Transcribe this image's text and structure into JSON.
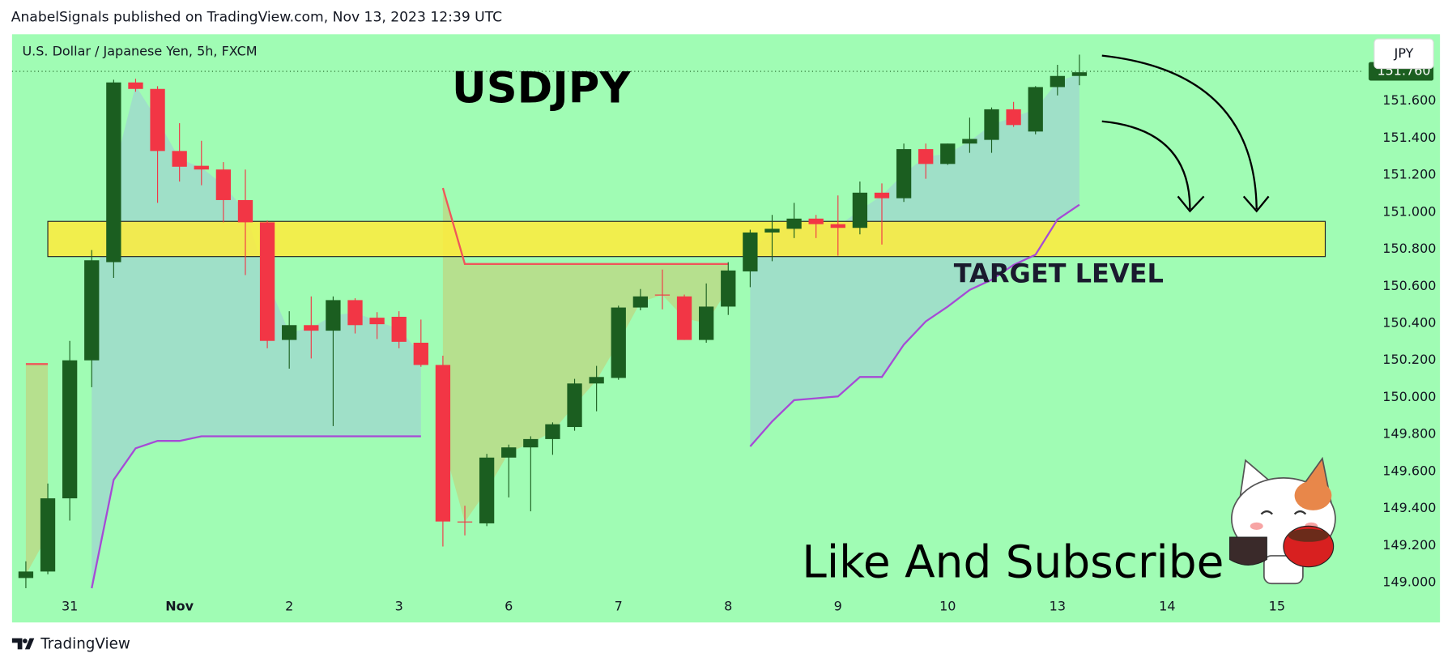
{
  "published": "AnabelSignals published on TradingView.com, Nov 13, 2023 12:39 UTC",
  "brand": "TradingView",
  "currency_button": "JPY",
  "chart_data": {
    "type": "candlestick",
    "title": "USDJPY",
    "subtitle": "U.S. Dollar / Japanese Yen, 5h, FXCM",
    "zone_label": "TARGET LEVEL",
    "call_to_action": "Like And Subscribe",
    "up_color": "#1b5e20",
    "down_color": "#f23645",
    "background": "#a0fcb4",
    "x": [
      0,
      1,
      2,
      3,
      4,
      5,
      6,
      7,
      8,
      9,
      10,
      11,
      12,
      13,
      14,
      15,
      16,
      17,
      18,
      19,
      20,
      21,
      22,
      23,
      24,
      25,
      26,
      27,
      28,
      29,
      30,
      31,
      32,
      33,
      34,
      35,
      36,
      37,
      38,
      39,
      40,
      41,
      42,
      43,
      44,
      45,
      46,
      47,
      48
    ],
    "open": [
      149.025,
      149.06,
      149.455,
      150.2,
      150.73,
      151.7,
      151.665,
      151.33,
      151.25,
      151.23,
      151.065,
      150.945,
      150.31,
      150.39,
      150.36,
      150.525,
      150.43,
      150.435,
      150.295,
      150.175,
      149.33,
      149.32,
      149.675,
      149.73,
      149.775,
      149.84,
      150.075,
      150.105,
      150.485,
      150.555,
      150.545,
      150.31,
      150.49,
      150.68,
      150.89,
      150.91,
      150.965,
      150.935,
      150.915,
      151.105,
      151.075,
      151.34,
      151.26,
      151.37,
      151.39,
      151.555,
      151.435,
      151.675,
      151.735
    ],
    "high": [
      149.115,
      149.535,
      150.305,
      150.795,
      151.715,
      151.72,
      151.68,
      151.48,
      151.385,
      151.27,
      151.23,
      150.955,
      150.465,
      150.545,
      150.545,
      150.535,
      150.46,
      150.465,
      150.42,
      150.225,
      149.415,
      149.695,
      149.745,
      149.79,
      149.865,
      150.1,
      150.17,
      150.495,
      150.585,
      150.69,
      150.555,
      150.615,
      150.73,
      150.905,
      150.985,
      151.05,
      150.985,
      151.09,
      151.165,
      151.155,
      151.37,
      151.37,
      151.37,
      151.51,
      151.565,
      151.595,
      151.68,
      151.795,
      151.85
    ],
    "low": [
      148.97,
      149.045,
      149.335,
      150.055,
      150.645,
      151.65,
      151.05,
      151.165,
      151.145,
      150.945,
      150.66,
      150.265,
      150.155,
      150.21,
      149.845,
      150.345,
      150.315,
      150.265,
      150.165,
      149.195,
      149.255,
      149.305,
      149.46,
      149.385,
      149.69,
      149.82,
      149.925,
      150.095,
      150.47,
      150.475,
      150.31,
      150.295,
      150.445,
      150.595,
      150.735,
      150.86,
      150.86,
      150.765,
      150.88,
      150.825,
      151.055,
      151.18,
      151.255,
      151.32,
      151.32,
      151.46,
      151.42,
      151.63,
      151.685
    ],
    "close": [
      149.06,
      149.455,
      150.2,
      150.74,
      151.7,
      151.665,
      151.33,
      151.245,
      151.23,
      151.065,
      150.945,
      150.305,
      150.39,
      150.36,
      150.525,
      150.39,
      150.395,
      150.3,
      150.175,
      149.33,
      149.325,
      149.675,
      149.73,
      149.775,
      149.855,
      150.075,
      150.11,
      150.485,
      150.545,
      150.55,
      150.31,
      150.49,
      150.685,
      150.89,
      150.91,
      150.965,
      150.935,
      150.915,
      151.105,
      151.075,
      151.34,
      151.26,
      151.37,
      151.395,
      151.555,
      151.47,
      151.675,
      151.735,
      151.755
    ],
    "supertrend_down": [
      150.18,
      150.18,
      null,
      null,
      null,
      null,
      null,
      null,
      null,
      null,
      null,
      null,
      null,
      null,
      null,
      null,
      null,
      null,
      null,
      151.13,
      150.72,
      150.72,
      150.72,
      150.72,
      150.72,
      150.72,
      150.72,
      150.72,
      150.72,
      150.72,
      150.72,
      150.72,
      150.72,
      null,
      null,
      null,
      null,
      null,
      null,
      null,
      null,
      null,
      null,
      null,
      null,
      null,
      null,
      null,
      null
    ],
    "supertrend_up": [
      null,
      null,
      null,
      148.97,
      149.555,
      149.725,
      149.765,
      149.765,
      149.79,
      149.79,
      149.79,
      149.79,
      149.79,
      149.79,
      149.79,
      149.79,
      149.79,
      149.79,
      149.79,
      null,
      null,
      null,
      null,
      null,
      null,
      null,
      null,
      null,
      null,
      null,
      null,
      null,
      null,
      149.735,
      149.87,
      149.985,
      149.995,
      150.005,
      150.11,
      150.11,
      150.285,
      150.41,
      150.49,
      150.58,
      150.635,
      150.715,
      150.77,
      150.96,
      151.04
    ],
    "supertrend_down_color": "#f0565a",
    "supertrend_up_color": "#a64ad6",
    "zone_y": [
      150.76,
      150.95
    ],
    "zone_x": [
      1.0,
      59.2
    ],
    "zone_color": "#ffeb3b",
    "last_price": {
      "value": 151.76,
      "label": "151.760"
    },
    "xlim": [
      -0.63,
      60.84
    ],
    "ylim": [
      148.785,
      151.96
    ],
    "xticks": [
      {
        "value": 2,
        "label": "31"
      },
      {
        "value": 7,
        "label": "Nov"
      },
      {
        "value": 12,
        "label": "2"
      },
      {
        "value": 17,
        "label": "3"
      },
      {
        "value": 22,
        "label": "6"
      },
      {
        "value": 27,
        "label": "7"
      },
      {
        "value": 32,
        "label": "8"
      },
      {
        "value": 37,
        "label": "9"
      },
      {
        "value": 42,
        "label": "10"
      },
      {
        "value": 47,
        "label": "13"
      },
      {
        "value": 52,
        "label": "14"
      },
      {
        "value": 57,
        "label": "15"
      }
    ],
    "yticks": [
      {
        "value": 149,
        "label": "149.000"
      },
      {
        "value": 149.2,
        "label": "149.200"
      },
      {
        "value": 149.4,
        "label": "149.400"
      },
      {
        "value": 149.6,
        "label": "149.600"
      },
      {
        "value": 149.8,
        "label": "149.800"
      },
      {
        "value": 150,
        "label": "150.000"
      },
      {
        "value": 150.2,
        "label": "150.200"
      },
      {
        "value": 150.4,
        "label": "150.400"
      },
      {
        "value": 150.6,
        "label": "150.600"
      },
      {
        "value": 150.8,
        "label": "150.800"
      },
      {
        "value": 151,
        "label": "151.000"
      },
      {
        "value": 151.2,
        "label": "151.200"
      },
      {
        "value": 151.4,
        "label": "151.400"
      },
      {
        "value": 151.6,
        "label": "151.600"
      }
    ]
  }
}
